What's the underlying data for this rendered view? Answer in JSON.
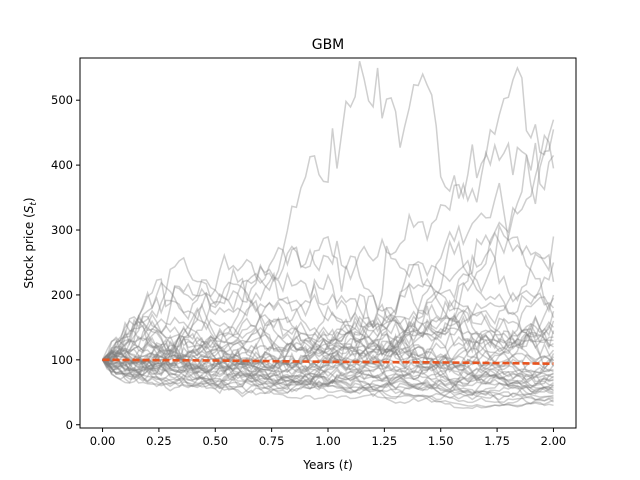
{
  "chart_data": {
    "type": "line",
    "title": "GBM",
    "xlabel_main": "Years (",
    "xlabel_italic": "t",
    "xlabel_end": ")",
    "ylabel_main": "Stock price (",
    "ylabel_italic": "S",
    "ylabel_sub": "t",
    "ylabel_end": ")",
    "xlim": [
      -0.1,
      2.1
    ],
    "ylim": [
      -5,
      565
    ],
    "xticks": [
      0.0,
      0.25,
      0.5,
      0.75,
      1.0,
      1.25,
      1.5,
      1.75,
      2.0
    ],
    "xtick_labels": [
      "0.00",
      "0.25",
      "0.50",
      "0.75",
      "1.00",
      "1.25",
      "1.50",
      "1.75",
      "2.00"
    ],
    "yticks": [
      0,
      100,
      200,
      300,
      400,
      500
    ],
    "ytick_labels": [
      "0",
      "100",
      "200",
      "300",
      "400",
      "500"
    ],
    "grid": false,
    "legend": "none",
    "colors": {
      "paths": "#808080",
      "mean": "#e8531e"
    },
    "path_count": 50,
    "path_start": 100,
    "path_steps": 100,
    "path_t_end": 2.0,
    "path_final_values_approx": [
      470,
      455,
      415,
      395,
      290,
      250,
      220,
      200,
      195,
      180,
      175,
      165,
      160,
      150,
      145,
      140,
      135,
      130,
      125,
      120,
      115,
      110,
      105,
      100,
      98,
      95,
      92,
      90,
      85,
      82,
      80,
      78,
      75,
      72,
      70,
      68,
      65,
      62,
      60,
      58,
      55,
      52,
      50,
      48,
      45,
      42,
      40,
      38,
      35,
      30
    ],
    "mean": {
      "x": [
        0.0,
        0.5,
        1.0,
        1.5,
        2.0
      ],
      "y": [
        100,
        99,
        97,
        96,
        94
      ]
    }
  }
}
